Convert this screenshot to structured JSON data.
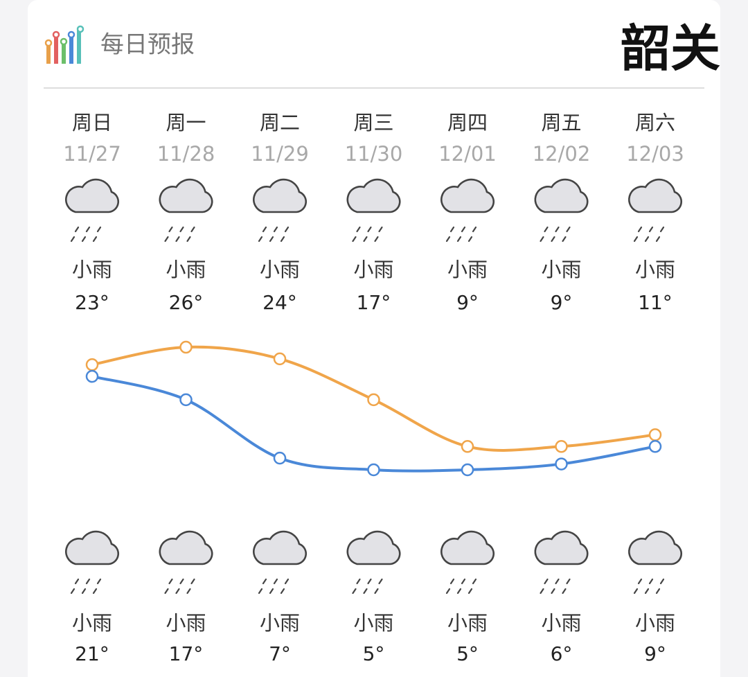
{
  "header": {
    "title": "每日预报",
    "city": "韶关"
  },
  "chart_data": {
    "type": "line",
    "categories": [
      "周日",
      "周一",
      "周二",
      "周三",
      "周四",
      "周五",
      "周六"
    ],
    "dates": [
      "11/27",
      "11/28",
      "11/29",
      "11/30",
      "12/01",
      "12/02",
      "12/03"
    ],
    "series": [
      {
        "color": "#f0a54a",
        "values": [
          23,
          26,
          24,
          17,
          9,
          9,
          11
        ],
        "value_labels": [
          "23°",
          "26°",
          "24°",
          "17°",
          "9°",
          "9°",
          "11°"
        ],
        "weather": [
          "小雨",
          "小雨",
          "小雨",
          "小雨",
          "小雨",
          "小雨",
          "小雨"
        ]
      },
      {
        "color": "#4a88d8",
        "values": [
          21,
          17,
          7,
          5,
          5,
          6,
          9
        ],
        "value_labels": [
          "21°",
          "17°",
          "7°",
          "5°",
          "5°",
          "6°",
          "9°"
        ],
        "weather": [
          "小雨",
          "小雨",
          "小雨",
          "小雨",
          "小雨",
          "小雨",
          "小雨"
        ]
      }
    ]
  }
}
